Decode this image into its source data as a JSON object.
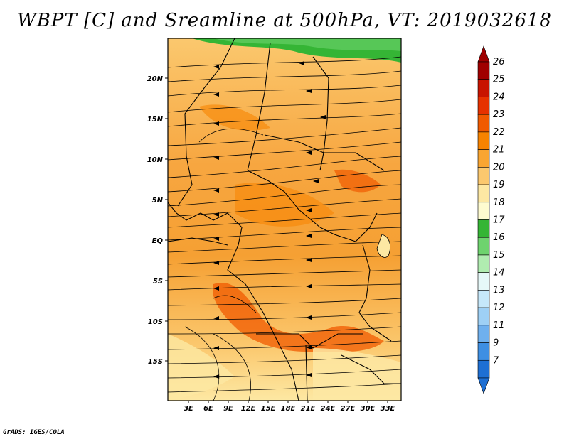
{
  "title": "WBPT [C] and Sreamline at 500hPa, VT: 2019032618",
  "footer": "GrADS: IGES/COLA",
  "map": {
    "latitude_labels": [
      "20N",
      "15N",
      "10N",
      "5N",
      "EQ",
      "5S",
      "10S",
      "15S"
    ],
    "longitude_labels": [
      "3E",
      "6E",
      "9E",
      "12E",
      "15E",
      "18E",
      "21E",
      "24E",
      "27E",
      "30E",
      "33E"
    ],
    "features": [
      "country-borders",
      "streamlines",
      "shaded-wbpt"
    ]
  },
  "colorbar": {
    "labels": [
      "26",
      "25",
      "24",
      "23",
      "22",
      "21",
      "20",
      "19",
      "18",
      "17",
      "16",
      "15",
      "14",
      "13",
      "12",
      "11",
      "9",
      "7"
    ],
    "colors": [
      "#a00000",
      "#c81400",
      "#e63200",
      "#f05a00",
      "#f78300",
      "#f9a531",
      "#fbc86e",
      "#fde8a3",
      "#fefbd0",
      "#35b535",
      "#6ed36e",
      "#b0ecb0",
      "#e6f8f8",
      "#c6e8fa",
      "#9ed0f5",
      "#6fb0ee",
      "#3e8fe3",
      "#1e6fd3"
    ]
  }
}
